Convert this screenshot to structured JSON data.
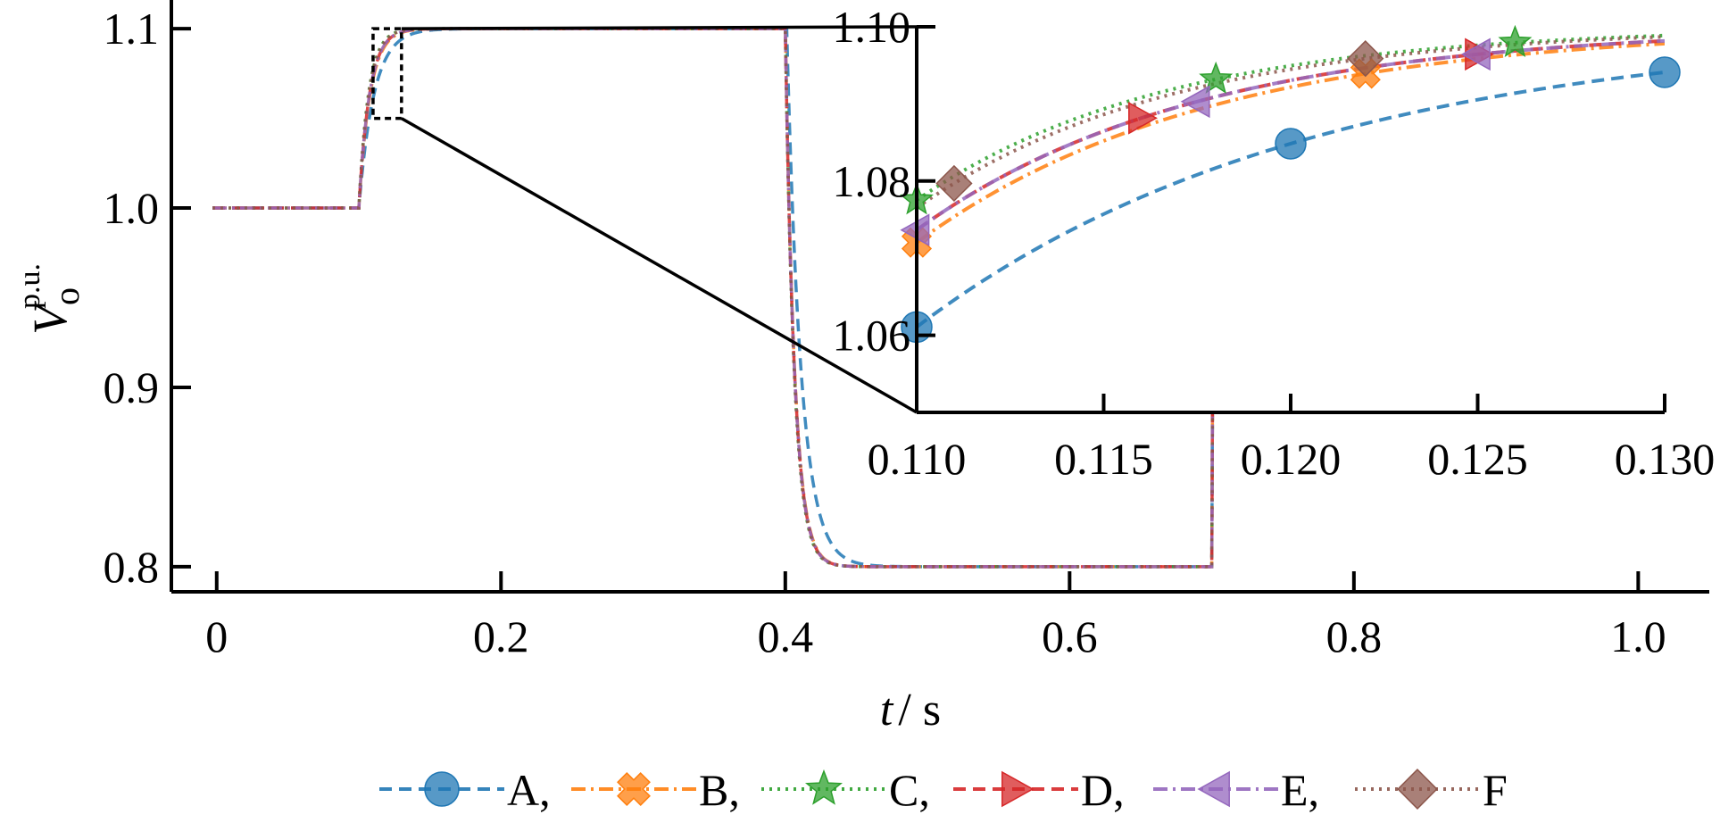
{
  "chart_data": {
    "type": "line",
    "xlabel": {
      "italic": "t",
      "rest": "/ s"
    },
    "ylabel": {
      "main": "V",
      "sub": "o",
      "sup": "p.u."
    },
    "xlim": [
      -0.03,
      1.05
    ],
    "ylim": [
      0.786,
      1.116
    ],
    "xticks": [
      {
        "v": 0,
        "label": "0"
      },
      {
        "v": 0.2,
        "label": "0.2"
      },
      {
        "v": 0.4,
        "label": "0.4"
      },
      {
        "v": 0.6,
        "label": "0.6"
      },
      {
        "v": 0.8,
        "label": "0.8"
      },
      {
        "v": 1.0,
        "label": "1.0"
      }
    ],
    "yticks": [
      {
        "v": 0.8,
        "label": "0.8"
      },
      {
        "v": 0.9,
        "label": "0.9"
      },
      {
        "v": 1.0,
        "label": "1.0"
      },
      {
        "v": 1.1,
        "label": "1.1"
      }
    ],
    "zoom_box": {
      "x": [
        0.11,
        0.13
      ],
      "y": [
        1.05,
        1.1
      ]
    },
    "inset": {
      "xlim": [
        0.11,
        0.13
      ],
      "ylim": [
        1.05,
        1.1
      ],
      "xticks": [
        {
          "v": 0.11,
          "label": "0.110"
        },
        {
          "v": 0.115,
          "label": "0.115"
        },
        {
          "v": 0.12,
          "label": "0.120"
        },
        {
          "v": 0.125,
          "label": "0.125"
        },
        {
          "v": 0.13,
          "label": "0.130"
        }
      ],
      "yticks": [
        {
          "v": 1.06,
          "label": "1.06"
        },
        {
          "v": 1.08,
          "label": "1.08"
        },
        {
          "v": 1.1,
          "label": "1.10"
        }
      ]
    },
    "series": [
      {
        "name": "A",
        "legend_label": "A,",
        "color": "#1f77b4",
        "dash": "14 8",
        "marker": "circle",
        "tau_rise": 0.0106,
        "tau_fall": 0.01,
        "delay_fall": 0.001,
        "inset_markers": [
          0.11,
          0.12,
          0.13
        ]
      },
      {
        "name": "B",
        "legend_label": "B,",
        "color": "#ff7f0e",
        "dash": "16 6 3 6",
        "marker": "x",
        "tau_rise": 0.00785,
        "tau_fall": 0.0065,
        "delay_fall": 0.0,
        "inset_markers": [
          0.11,
          0.122
        ]
      },
      {
        "name": "C",
        "legend_label": "C,",
        "color": "#2ca02c",
        "dash": "3 6",
        "marker": "star",
        "tau_rise": 0.0067,
        "tau_fall": 0.0062,
        "delay_fall": 0.0,
        "inset_markers": [
          0.11,
          0.118,
          0.126
        ]
      },
      {
        "name": "D",
        "legend_label": "D,",
        "color": "#d62728",
        "dash": "14 8",
        "marker": "tri-right",
        "tau_rise": 0.0075,
        "tau_fall": 0.0064,
        "delay_fall": 0.0,
        "inset_markers": [
          0.116,
          0.125
        ]
      },
      {
        "name": "E",
        "legend_label": "E,",
        "color": "#9467bd",
        "dash": "16 6 3 6",
        "marker": "tri-left",
        "tau_rise": 0.0075,
        "tau_fall": 0.0064,
        "delay_fall": 0.0,
        "inset_markers": [
          0.11,
          0.1175,
          0.125
        ]
      },
      {
        "name": "F",
        "legend_label": "F",
        "color": "#8c564b",
        "dash": "3 6",
        "marker": "diamond",
        "tau_rise": 0.0069,
        "tau_fall": 0.0063,
        "delay_fall": 0.0,
        "inset_markers": [
          0.111,
          0.122
        ]
      }
    ]
  }
}
